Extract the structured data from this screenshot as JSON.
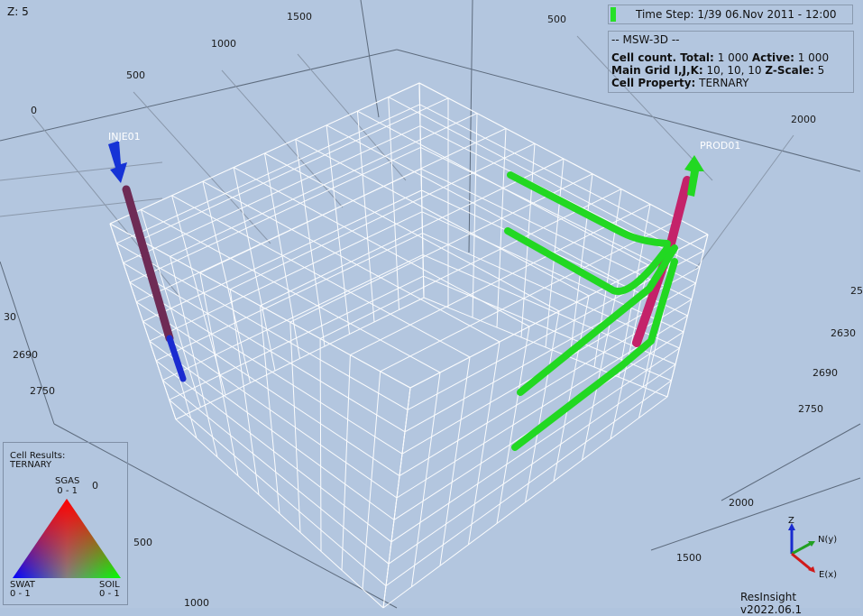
{
  "app": {
    "name": "ResInsight",
    "version_text": "ResInsight v2022.06.1"
  },
  "view": {
    "z_scale_label": "Z: 5",
    "time_step_text": "Time Step: 1/39 06.Nov 2011 - 12:00"
  },
  "info": {
    "header": "-- MSW-3D --",
    "cell_count_label": "Cell count. Total:",
    "cell_count_total": "1 000",
    "active_label": "Active:",
    "active_value": "1 000",
    "main_grid_label": "Main Grid I,J,K:",
    "main_grid_value": "10, 10, 10",
    "zscale_label": "Z-Scale:",
    "zscale_value": "5",
    "cell_property_label": "Cell Property:",
    "cell_property_value": "TERNARY"
  },
  "legend": {
    "title_line1": "Cell Results:",
    "title_line2": "TERNARY",
    "top_name": "SGAS",
    "top_range": "0 - 1",
    "left_name": "SWAT",
    "left_range": "0 - 1",
    "right_name": "SOIL",
    "right_range": "0 - 1",
    "colors": {
      "top": "#ff0000",
      "left": "#0000ff",
      "right": "#00ff00"
    }
  },
  "wells": [
    {
      "name": "INJE01",
      "color": "#1a2bd0",
      "type": "injector"
    },
    {
      "name": "PROD01",
      "color": "#22d822",
      "type": "producer"
    }
  ],
  "axis_ticks": {
    "top_x": [
      "0",
      "500",
      "1000",
      "1500"
    ],
    "top_right": [
      "500"
    ],
    "right_y": [
      "2000"
    ],
    "right_depth": [
      "25",
      "2630",
      "2690",
      "2750"
    ],
    "left_depth": [
      "30",
      "2690",
      "2750"
    ],
    "bottom_x": [
      "0",
      "500",
      "1000"
    ],
    "bottom_right": [
      "2000",
      "1500"
    ]
  },
  "axis_cross": {
    "z": "Z",
    "n": "N(y)",
    "e": "E(x)"
  },
  "colors": {
    "background": "#b3c6df",
    "grid_line": "#ffffff",
    "segment": "#c4226a"
  }
}
